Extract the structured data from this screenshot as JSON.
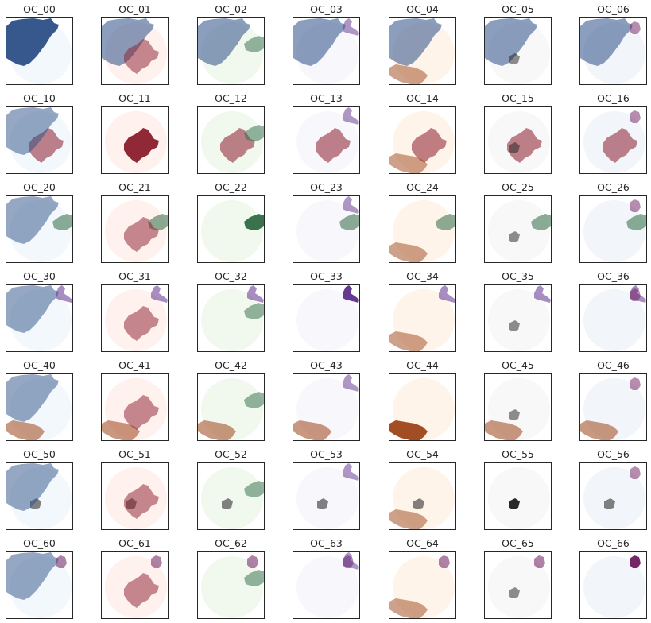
{
  "figure": {
    "rows": [
      0,
      1,
      2,
      3,
      4,
      5,
      6
    ],
    "cols": [
      0,
      1,
      2,
      3,
      4,
      5,
      6
    ]
  },
  "colormaps": {
    "0": {
      "name": "Blues",
      "color": "#2c4f86",
      "light": "#f3f8fd"
    },
    "1": {
      "name": "Reds",
      "color": "#8a1c2c",
      "light": "#fff1ed"
    },
    "2": {
      "name": "Greens",
      "color": "#2e6a43",
      "light": "#f1f9ef"
    },
    "3": {
      "name": "Purples",
      "color": "#5e2f8c",
      "light": "#f8f7fb"
    },
    "4": {
      "name": "Oranges",
      "color": "#9d4318",
      "light": "#fff4ea"
    },
    "5": {
      "name": "Greys",
      "color": "#1e1e1e",
      "light": "#f8f8f8"
    },
    "6": {
      "name": "BuPu",
      "color": "#6d1a5f",
      "light": "#f2f6fa"
    }
  },
  "chart_data": {
    "type": "heatmap",
    "description_level": "paired region overlap panels",
    "titles": [
      [
        "OC_00",
        "OC_01",
        "OC_02",
        "OC_03",
        "OC_04",
        "OC_05",
        "OC_06"
      ],
      [
        "OC_10",
        "OC_11",
        "OC_12",
        "OC_13",
        "OC_14",
        "OC_15",
        "OC_16"
      ],
      [
        "OC_20",
        "OC_21",
        "OC_22",
        "OC_23",
        "OC_24",
        "OC_25",
        "OC_26"
      ],
      [
        "OC_30",
        "OC_31",
        "OC_32",
        "OC_33",
        "OC_34",
        "OC_35",
        "OC_36"
      ],
      [
        "OC_40",
        "OC_41",
        "OC_42",
        "OC_43",
        "OC_44",
        "OC_45",
        "OC_46"
      ],
      [
        "OC_50",
        "OC_51",
        "OC_52",
        "OC_53",
        "OC_54",
        "OC_55",
        "OC_56"
      ],
      [
        "OC_60",
        "OC_61",
        "OC_62",
        "OC_63",
        "OC_64",
        "OC_65",
        "OC_66"
      ]
    ],
    "grid": false,
    "ticks": false
  }
}
